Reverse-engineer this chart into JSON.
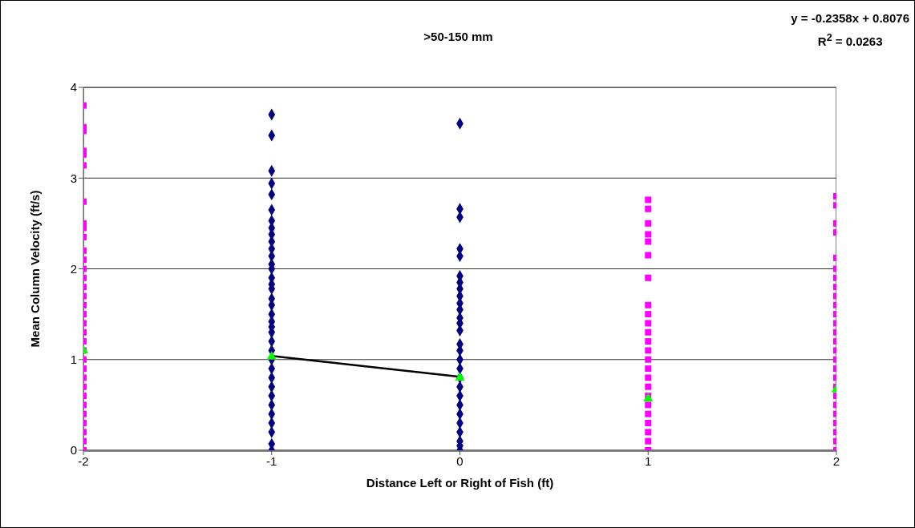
{
  "chart_data": {
    "type": "scatter",
    "title": ">50-150 mm",
    "xlabel": "Distance Left or Right of Fish (ft)",
    "ylabel": "Mean Column Velocity (ft/s)",
    "annotations": [
      "y = -0.2358x + 0.8076",
      "R$^{2}$ = 0.0263"
    ],
    "xlim": [
      -2,
      2
    ],
    "xticks": [
      -2,
      -1,
      0,
      1,
      2
    ],
    "ylim": [
      0,
      4
    ],
    "yticks": [
      0,
      1,
      2,
      3,
      4
    ],
    "grid": "y",
    "series": [
      {
        "marker": "square",
        "color": "#ff00ff",
        "x": [
          -2,
          -2,
          -2,
          -2,
          -2,
          -2,
          -2,
          -2,
          -2,
          -2,
          -2,
          -2,
          -2,
          -2,
          -2,
          -2,
          -2,
          -2,
          -2,
          -2,
          -2,
          -2,
          -2,
          -2,
          -2,
          -2,
          -2,
          -2,
          -2,
          -2,
          -2,
          -2,
          -2,
          1,
          1,
          1,
          1,
          1,
          1,
          1,
          1,
          1,
          1,
          1,
          1,
          1,
          1,
          1,
          1,
          1,
          1,
          1,
          1,
          1,
          1,
          1,
          1,
          2,
          2,
          2,
          2,
          2,
          2,
          2,
          2,
          2,
          2,
          2,
          2,
          2,
          2,
          2,
          2,
          2,
          2,
          2,
          2,
          2,
          2,
          2,
          2,
          2,
          2
        ],
        "values": [
          3.8,
          3.56,
          3.52,
          3.3,
          3.26,
          3.14,
          2.74,
          2.5,
          2.45,
          2.35,
          2.2,
          2.1,
          2.0,
          1.9,
          1.8,
          1.7,
          1.6,
          1.5,
          1.4,
          1.3,
          1.2,
          1.1,
          1.0,
          0.9,
          0.8,
          0.7,
          0.6,
          0.5,
          0.4,
          0.3,
          0.2,
          0.1,
          0,
          2.76,
          2.66,
          2.5,
          2.38,
          2.3,
          2.15,
          1.9,
          1.6,
          1.5,
          1.4,
          1.3,
          1.2,
          1.1,
          1.0,
          0.9,
          0.8,
          0.7,
          0.6,
          0.5,
          0.4,
          0.3,
          0.2,
          0.1,
          0,
          2.8,
          2.7,
          2.5,
          2.4,
          2.12,
          2.0,
          1.9,
          1.8,
          1.7,
          1.6,
          1.5,
          1.4,
          1.3,
          1.2,
          1.1,
          1.0,
          0.9,
          0.8,
          0.7,
          0.6,
          0.5,
          0.4,
          0.3,
          0.2,
          0.1,
          0
        ]
      },
      {
        "marker": "diamond",
        "color": "#000080",
        "x": [
          -1,
          -1,
          -1,
          -1,
          -1,
          -1,
          -1,
          -1,
          -1,
          -1,
          -1,
          -1,
          -1,
          -1,
          -1,
          -1,
          -1,
          -1,
          -1,
          -1,
          -1,
          -1,
          -1,
          -1,
          -1,
          -1,
          -1,
          -1,
          -1,
          -1,
          -1,
          -1,
          -1,
          -1,
          -1,
          -1,
          0,
          0,
          0,
          0,
          0,
          0,
          0,
          0,
          0,
          0,
          0,
          0,
          0,
          0,
          0,
          0,
          0,
          0,
          0,
          0,
          0,
          0,
          0,
          0,
          0,
          0,
          0,
          0
        ],
        "values": [
          3.7,
          3.47,
          3.08,
          2.94,
          2.82,
          2.65,
          2.53,
          2.45,
          2.38,
          2.3,
          2.22,
          2.14,
          2.05,
          2.0,
          1.9,
          1.83,
          1.78,
          1.67,
          1.6,
          1.5,
          1.42,
          1.36,
          1.3,
          1.2,
          1.1,
          1.0,
          0.9,
          0.8,
          0.7,
          0.6,
          0.5,
          0.4,
          0.3,
          0.2,
          0.07,
          0,
          3.6,
          2.66,
          2.57,
          2.22,
          2.14,
          1.92,
          1.85,
          1.78,
          1.7,
          1.62,
          1.55,
          1.46,
          1.4,
          1.32,
          1.17,
          1.1,
          1.0,
          0.9,
          0.8,
          0.7,
          0.6,
          0.5,
          0.4,
          0.3,
          0.2,
          0.1,
          0.05,
          0
        ]
      },
      {
        "type": "line",
        "marker": "none",
        "color": "#000000",
        "x": [
          -1,
          0
        ],
        "values": [
          1.04,
          0.81
        ]
      },
      {
        "marker": "triangle",
        "color": "#00ff00",
        "x": [
          -2,
          -1,
          0,
          1,
          2
        ],
        "values": [
          1.1,
          1.03,
          0.8,
          0.57,
          0.67
        ]
      }
    ]
  }
}
